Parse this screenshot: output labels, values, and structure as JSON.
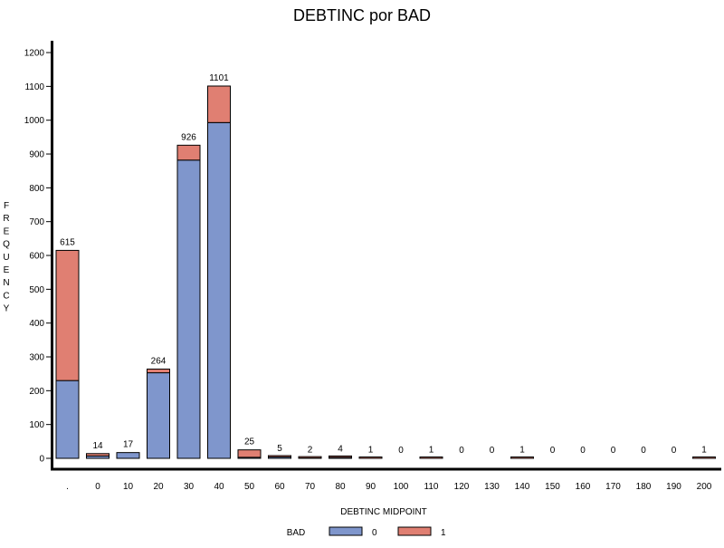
{
  "chart_data": {
    "type": "bar",
    "stacked": true,
    "title": "DEBTINC por BAD",
    "xlabel": "DEBTINC MIDPOINT",
    "ylabel": "FREQUENCY",
    "ylim": [
      0,
      1200
    ],
    "yticks": [
      0,
      100,
      200,
      300,
      400,
      500,
      600,
      700,
      800,
      900,
      1000,
      1100,
      1200
    ],
    "grid": false,
    "legend_title": "BAD",
    "legend_position": "bottom-center",
    "categories": [
      ".",
      "0",
      "10",
      "20",
      "30",
      "40",
      "50",
      "60",
      "70",
      "80",
      "90",
      "100",
      "110",
      "120",
      "130",
      "140",
      "150",
      "160",
      "170",
      "180",
      "190",
      "200"
    ],
    "series": [
      {
        "name": "0",
        "color": "#7f96cc",
        "values": [
          230,
          7,
          17,
          253,
          882,
          993,
          3,
          4,
          1,
          3,
          0,
          0,
          0,
          0,
          0,
          0,
          0,
          0,
          0,
          0,
          0,
          0
        ]
      },
      {
        "name": "1",
        "color": "#e07f72",
        "values": [
          385,
          7,
          0,
          11,
          44,
          108,
          22,
          1,
          1,
          1,
          1,
          0,
          1,
          0,
          0,
          1,
          0,
          0,
          0,
          0,
          0,
          1
        ]
      }
    ],
    "totals": [
      615,
      14,
      17,
      264,
      926,
      1101,
      25,
      5,
      2,
      4,
      1,
      0,
      1,
      0,
      0,
      1,
      0,
      0,
      0,
      0,
      0,
      1
    ]
  }
}
